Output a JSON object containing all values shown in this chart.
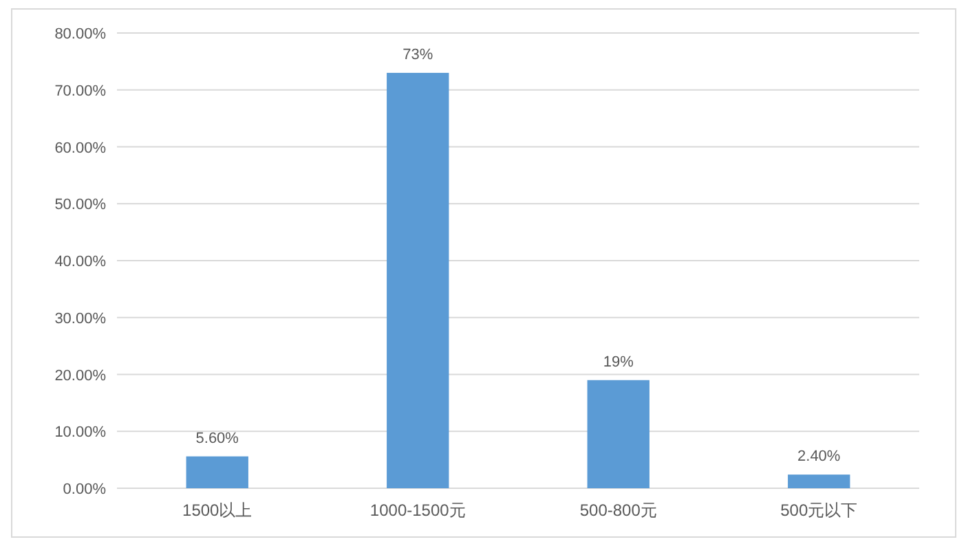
{
  "chart_data": {
    "type": "bar",
    "categories": [
      "1500以上",
      "1000-1500元",
      "500-800元",
      "500元以下"
    ],
    "values": [
      5.6,
      73,
      19,
      2.4
    ],
    "value_labels": [
      "5.60%",
      "73%",
      "19%",
      "2.40%"
    ],
    "color": "#5b9bd5",
    "ylim": [
      0,
      80
    ],
    "yticks": [
      {
        "value": 0,
        "label": "0.00%"
      },
      {
        "value": 10,
        "label": "10.00%"
      },
      {
        "value": 20,
        "label": "20.00%"
      },
      {
        "value": 30,
        "label": "30.00%"
      },
      {
        "value": 40,
        "label": "40.00%"
      },
      {
        "value": 50,
        "label": "50.00%"
      },
      {
        "value": 60,
        "label": "60.00%"
      },
      {
        "value": 70,
        "label": "70.00%"
      },
      {
        "value": 80,
        "label": "80.00%"
      }
    ],
    "grid": "y"
  }
}
